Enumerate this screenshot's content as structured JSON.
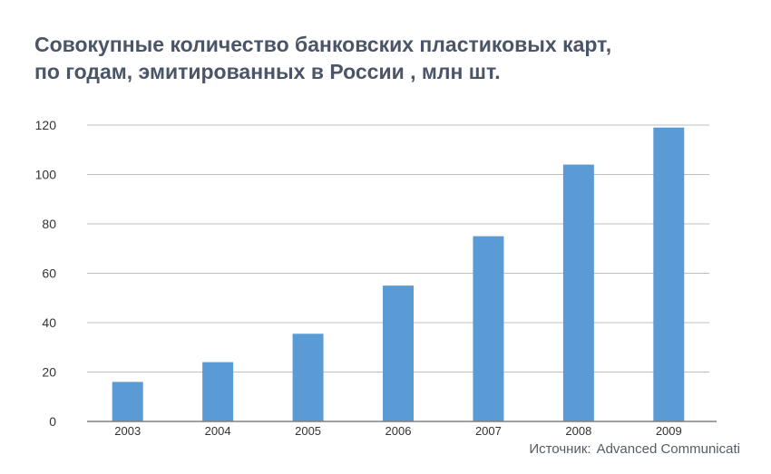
{
  "title_lines": [
    "Совокупные количество банковских пластиковых карт,",
    "по годам, эмитированных в России , млн шт."
  ],
  "source": {
    "label": "Источник:",
    "text": "Advanced Communicati"
  },
  "colors": {
    "bar": "#5b9bd5",
    "grid": "#bfbfbf",
    "axis": "#808080",
    "text": "#333333",
    "title": "#4a5568"
  },
  "chart_data": {
    "type": "bar",
    "categories": [
      "2003",
      "2004",
      "2005",
      "2006",
      "2007",
      "2008",
      "2009"
    ],
    "values": [
      16,
      24,
      35.5,
      55,
      75,
      104,
      119
    ],
    "y_ticks": [
      0,
      20,
      40,
      60,
      80,
      100,
      120
    ],
    "ylim": [
      0,
      120
    ],
    "grid": true
  }
}
